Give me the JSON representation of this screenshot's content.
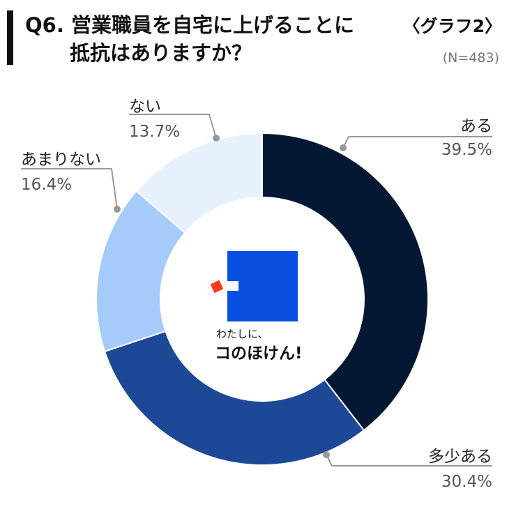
{
  "header": {
    "title_line1": "Q6. 営業職員を自宅に上げることに",
    "title_line2": "抵抗はありますか？",
    "graph_label": "〈グラフ2〉",
    "sample_size": "(N=483)"
  },
  "center_logo": {
    "small_text": "わたしに、",
    "big_text": "コのほけん!",
    "colors": {
      "square": "#0b4fe0",
      "accent": "#ff3b1a"
    }
  },
  "chart_data": {
    "type": "pie",
    "donut": true,
    "title": "Q6. 営業職員を自宅に上げることに抵抗はありますか？",
    "categories": [
      "ある",
      "多少ある",
      "あまりない",
      "ない"
    ],
    "values": [
      39.5,
      30.4,
      16.4,
      13.7
    ],
    "value_labels": [
      "39.5%",
      "30.4%",
      "16.4%",
      "13.7%"
    ],
    "colors": [
      "#041733",
      "#1c4896",
      "#a4cbfa",
      "#e7f1fd"
    ]
  }
}
